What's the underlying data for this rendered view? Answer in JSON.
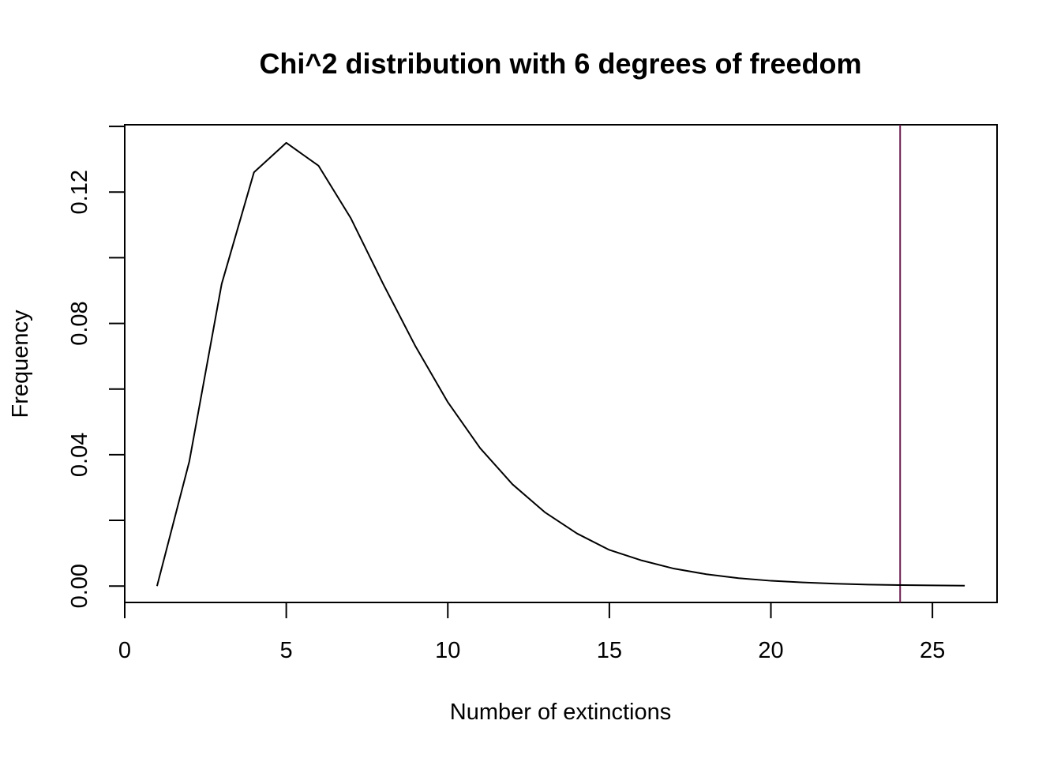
{
  "chart_data": {
    "type": "line",
    "title": "Chi^2 distribution with 6 degrees of freedom",
    "xlabel": "Number of extinctions",
    "ylabel": "Frequency",
    "xlim": [
      0,
      27
    ],
    "ylim": [
      -0.005,
      0.1405
    ],
    "x_ticks": [
      0,
      5,
      10,
      15,
      20,
      25
    ],
    "x_tick_labels": [
      "0",
      "5",
      "10",
      "15",
      "20",
      "25"
    ],
    "y_ticks": [
      0.0,
      0.02,
      0.04,
      0.06,
      0.08,
      0.1,
      0.12,
      0.14
    ],
    "y_tick_labels": [
      "0.00",
      "",
      "0.04",
      "",
      "0.08",
      "",
      "0.12",
      ""
    ],
    "grid": false,
    "series": [
      {
        "color": "#000000",
        "x": [
          1,
          2,
          3,
          4,
          5,
          6,
          7,
          8,
          9,
          10,
          11,
          12,
          13,
          14,
          15,
          16,
          17,
          18,
          19,
          20,
          21,
          22,
          23,
          24,
          25,
          26
        ],
        "y": [
          0.0,
          0.038,
          0.092,
          0.126,
          0.135,
          0.128,
          0.112,
          0.092,
          0.073,
          0.056,
          0.042,
          0.031,
          0.0225,
          0.016,
          0.011,
          0.0078,
          0.0053,
          0.0036,
          0.0024,
          0.0016,
          0.0011,
          0.0007,
          0.00045,
          0.0003,
          0.0002,
          0.0001
        ]
      }
    ],
    "vlines": [
      {
        "x": 24,
        "color": "#6a1b4d"
      }
    ]
  }
}
